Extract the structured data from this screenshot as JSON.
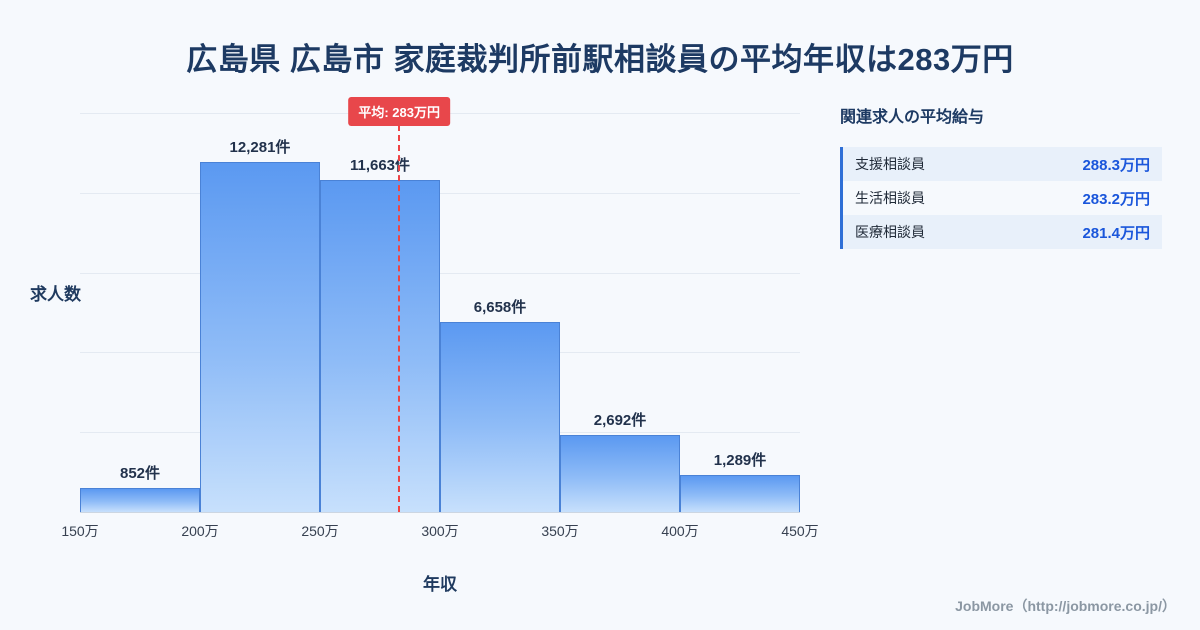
{
  "header": {
    "title": "広島県 広島市 家庭裁判所前駅相談員の平均年収は283万円"
  },
  "chart_data": {
    "type": "bar",
    "categories": [
      "150万-200万",
      "200万-250万",
      "250万-300万",
      "300万-350万",
      "350万-400万",
      "400万-450万"
    ],
    "values": [
      852,
      12281,
      11663,
      6658,
      2692,
      1289
    ],
    "bar_labels": [
      "852件",
      "12,281件",
      "11,663件",
      "6,658件",
      "2,692件",
      "1,289件"
    ],
    "x_ticks": [
      "150万",
      "200万",
      "250万",
      "300万",
      "350万",
      "400万",
      "450万"
    ],
    "x_range": [
      150,
      450
    ],
    "ylim": [
      0,
      14000
    ],
    "xlabel": "年収",
    "ylabel": "求人数",
    "grid": "horizontal",
    "average_line": {
      "value": 283,
      "label": "平均: 283万円",
      "color": "#ef4444"
    },
    "bar_fill_top": "#5b99f1",
    "bar_fill_bottom": "#c7e0fc",
    "bar_border": "#4a82d6"
  },
  "side_panel": {
    "heading": "関連求人の平均給与",
    "rows": [
      {
        "label": "支援相談員",
        "value": "288.3万円"
      },
      {
        "label": "生活相談員",
        "value": "283.2万円"
      },
      {
        "label": "医療相談員",
        "value": "281.4万円"
      }
    ]
  },
  "footer": {
    "credit": "JobMore（http://jobmore.co.jp/）"
  }
}
